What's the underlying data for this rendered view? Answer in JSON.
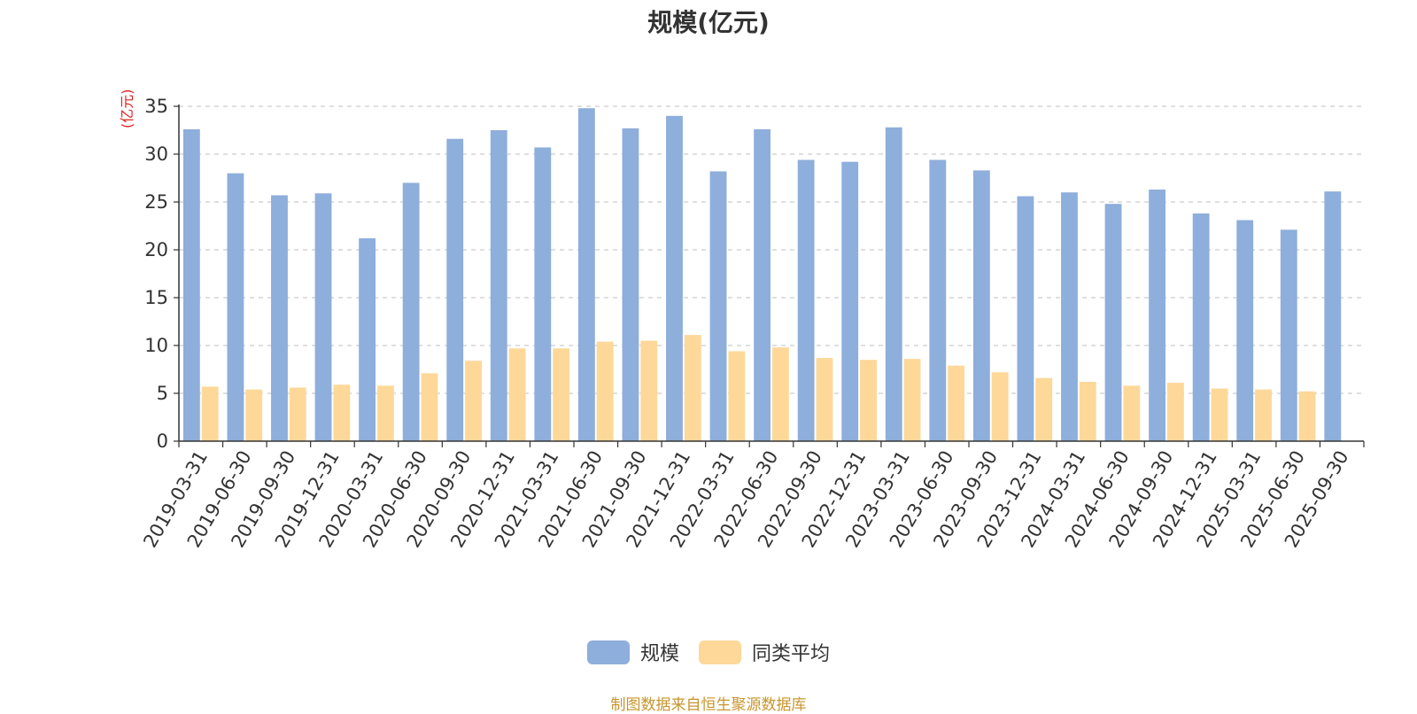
{
  "chart_data": {
    "type": "bar",
    "title": "规模(亿元)",
    "y_unit_label": "(亿元)",
    "categories": [
      "2019-03-31",
      "2019-06-30",
      "2019-09-30",
      "2019-12-31",
      "2020-03-31",
      "2020-06-30",
      "2020-09-30",
      "2020-12-31",
      "2021-03-31",
      "2021-06-30",
      "2021-09-30",
      "2021-12-31",
      "2022-03-31",
      "2022-06-30",
      "2022-09-30",
      "2022-12-31",
      "2023-03-31",
      "2023-06-30",
      "2023-09-30",
      "2023-12-31",
      "2024-03-31",
      "2024-06-30",
      "2024-09-30",
      "2024-12-31",
      "2025-03-31",
      "2025-06-30",
      "2025-09-30"
    ],
    "series": [
      {
        "name": "规模",
        "color": "#8eaedb",
        "values": [
          32.6,
          28.0,
          25.7,
          25.9,
          21.2,
          27.0,
          31.6,
          32.5,
          30.7,
          34.8,
          32.7,
          34.0,
          28.2,
          32.6,
          29.4,
          29.2,
          32.8,
          29.4,
          28.3,
          25.6,
          26.0,
          24.8,
          26.3,
          23.8,
          23.1,
          22.1,
          26.1
        ]
      },
      {
        "name": "同类平均",
        "color": "#fdd899",
        "values": [
          5.7,
          5.4,
          5.6,
          5.9,
          5.8,
          7.1,
          8.4,
          9.7,
          9.7,
          10.4,
          10.5,
          11.1,
          9.4,
          9.8,
          8.7,
          8.5,
          8.6,
          7.9,
          7.2,
          6.6,
          6.2,
          5.8,
          6.1,
          5.5,
          5.4,
          5.2,
          null
        ]
      }
    ],
    "ylim": [
      0,
      35
    ],
    "yticks": [
      0,
      5,
      10,
      15,
      20,
      25,
      30,
      35
    ],
    "grid": true,
    "legend_position": "bottom"
  },
  "footer": {
    "source": "制图数据来自恒生聚源数据库"
  }
}
